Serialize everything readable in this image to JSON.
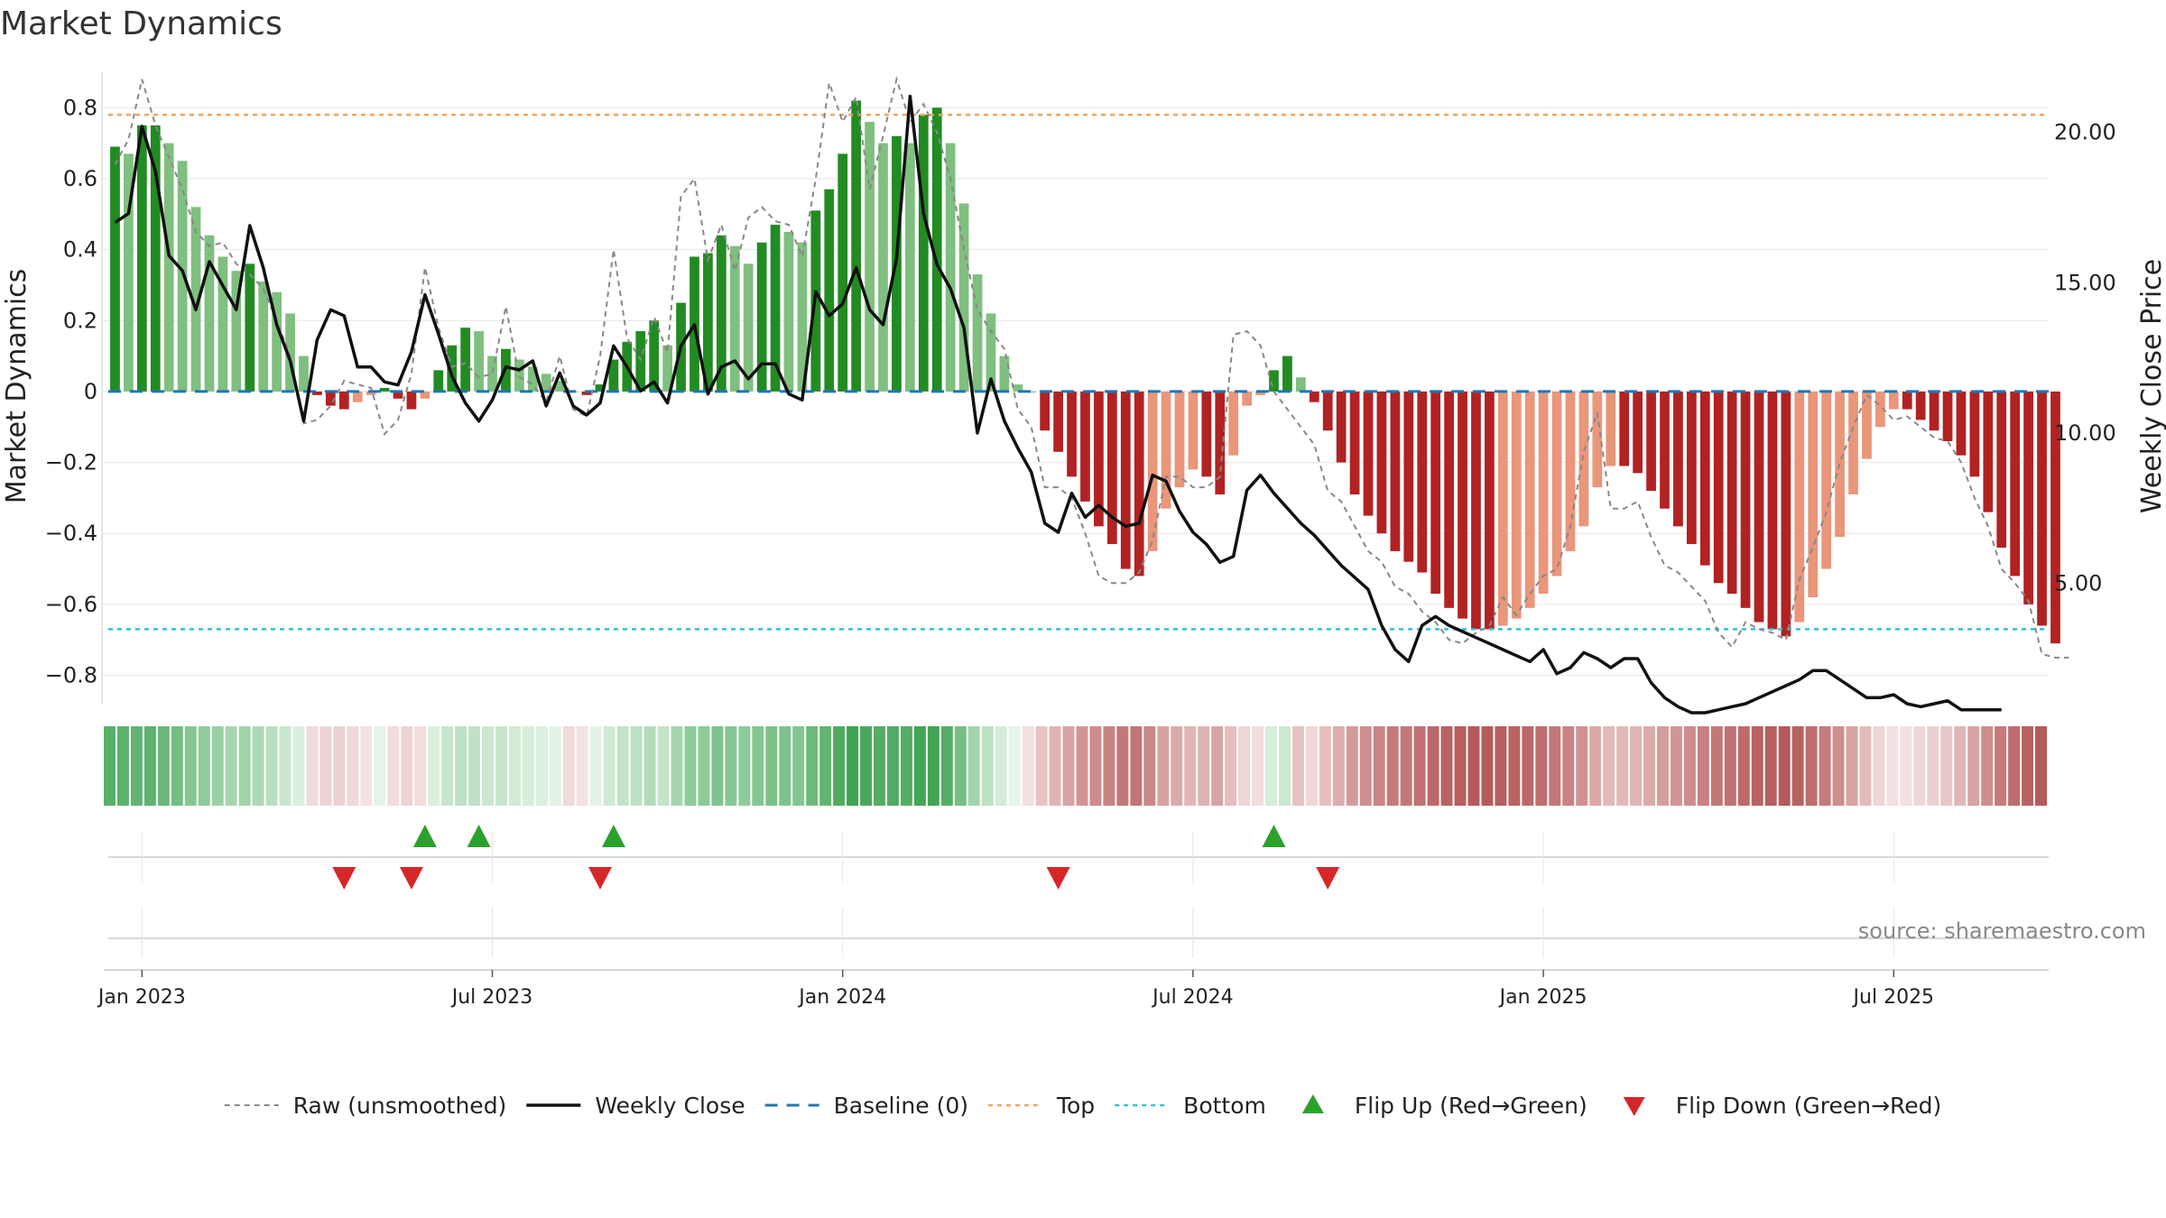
{
  "chart_data": {
    "type": "bar",
    "title": "Market Dynamics",
    "ylabel_left": "Market Dynamics",
    "ylabel_right": "Weekly Close Price",
    "ylim_left": [
      -0.88,
      0.9
    ],
    "ylim_right": [
      1.0,
      22.0
    ],
    "left_ticks": [
      {
        "v": 0.8,
        "label": "0.8"
      },
      {
        "v": 0.6,
        "label": "0.6"
      },
      {
        "v": 0.4,
        "label": "0.4"
      },
      {
        "v": 0.2,
        "label": "0.2"
      },
      {
        "v": 0,
        "label": "0"
      },
      {
        "v": -0.2,
        "label": "−0.2"
      },
      {
        "v": -0.4,
        "label": "−0.4"
      },
      {
        "v": -0.6,
        "label": "−0.6"
      },
      {
        "v": -0.8,
        "label": "−0.8"
      }
    ],
    "right_ticks": [
      {
        "v": 20,
        "label": "20.00"
      },
      {
        "v": 15,
        "label": "15.00"
      },
      {
        "v": 10,
        "label": "10.00"
      },
      {
        "v": 5,
        "label": "5.00"
      }
    ],
    "x_ticks": [
      {
        "week": 2,
        "label": "Jan 2023"
      },
      {
        "week": 28,
        "label": "Jul 2023"
      },
      {
        "week": 54,
        "label": "Jan 2024"
      },
      {
        "week": 80,
        "label": "Jul 2024"
      },
      {
        "week": 106,
        "label": "Jan 2025"
      },
      {
        "week": 132,
        "label": "Jul 2025"
      }
    ],
    "top_line": 0.78,
    "bottom_line": -0.67,
    "weeks": 144,
    "smoothed": [
      0.69,
      0.67,
      0.75,
      0.75,
      0.7,
      0.65,
      0.52,
      0.44,
      0.38,
      0.34,
      0.36,
      0.31,
      0.28,
      0.22,
      0.1,
      -0.01,
      -0.04,
      -0.05,
      -0.03,
      -0.01,
      0.01,
      -0.02,
      -0.05,
      -0.02,
      0.06,
      0.13,
      0.18,
      0.17,
      0.1,
      0.12,
      0.09,
      0.07,
      0.05,
      0.03,
      0.0,
      -0.01,
      0.02,
      0.09,
      0.14,
      0.17,
      0.2,
      0.13,
      0.25,
      0.38,
      0.39,
      0.44,
      0.41,
      0.36,
      0.42,
      0.47,
      0.45,
      0.42,
      0.51,
      0.57,
      0.67,
      0.82,
      0.76,
      0.7,
      0.72,
      0.7,
      0.78,
      0.8,
      0.7,
      0.53,
      0.33,
      0.22,
      0.1,
      0.02,
      0.0,
      -0.11,
      -0.17,
      -0.24,
      -0.31,
      -0.38,
      -0.43,
      -0.5,
      -0.52,
      -0.45,
      -0.33,
      -0.27,
      -0.22,
      -0.24,
      -0.29,
      -0.18,
      -0.04,
      -0.01,
      0.06,
      0.1,
      0.04,
      -0.03,
      -0.11,
      -0.2,
      -0.29,
      -0.35,
      -0.4,
      -0.45,
      -0.48,
      -0.51,
      -0.57,
      -0.61,
      -0.64,
      -0.67,
      -0.67,
      -0.66,
      -0.64,
      -0.61,
      -0.57,
      -0.52,
      -0.45,
      -0.38,
      -0.27,
      -0.21,
      -0.21,
      -0.23,
      -0.28,
      -0.33,
      -0.38,
      -0.43,
      -0.49,
      -0.54,
      -0.57,
      -0.61,
      -0.65,
      -0.67,
      -0.69,
      -0.65,
      -0.58,
      -0.5,
      -0.41,
      -0.29,
      -0.19,
      -0.1,
      -0.05,
      -0.05,
      -0.08,
      -0.11,
      -0.14,
      -0.18,
      -0.24,
      -0.34,
      -0.44,
      -0.52,
      -0.6,
      -0.66,
      -0.71
    ],
    "raw": [
      0.64,
      0.71,
      0.88,
      0.75,
      0.66,
      0.57,
      0.45,
      0.41,
      0.42,
      0.36,
      0.33,
      0.29,
      0.2,
      0.1,
      -0.09,
      -0.08,
      -0.04,
      0.03,
      0.02,
      0.01,
      -0.12,
      -0.08,
      0.05,
      0.35,
      0.18,
      0.07,
      0.08,
      0.04,
      0.05,
      0.24,
      0.04,
      0.02,
      -0.03,
      0.1,
      -0.05,
      -0.07,
      0.1,
      0.4,
      0.15,
      0.09,
      0.21,
      0.11,
      0.55,
      0.6,
      0.37,
      0.47,
      0.34,
      0.49,
      0.52,
      0.48,
      0.47,
      0.38,
      0.6,
      0.87,
      0.76,
      0.83,
      0.57,
      0.72,
      0.88,
      0.76,
      0.81,
      0.73,
      0.6,
      0.4,
      0.23,
      0.17,
      0.12,
      -0.05,
      -0.1,
      -0.27,
      -0.27,
      -0.3,
      -0.4,
      -0.52,
      -0.54,
      -0.54,
      -0.51,
      -0.42,
      -0.24,
      -0.24,
      -0.27,
      -0.27,
      -0.24,
      0.16,
      0.17,
      0.13,
      0.0,
      -0.05,
      -0.1,
      -0.15,
      -0.28,
      -0.31,
      -0.38,
      -0.45,
      -0.48,
      -0.55,
      -0.57,
      -0.62,
      -0.65,
      -0.7,
      -0.71,
      -0.68,
      -0.66,
      -0.58,
      -0.63,
      -0.57,
      -0.52,
      -0.5,
      -0.38,
      -0.17,
      -0.06,
      -0.33,
      -0.33,
      -0.31,
      -0.41,
      -0.49,
      -0.51,
      -0.55,
      -0.59,
      -0.68,
      -0.72,
      -0.65,
      -0.67,
      -0.68,
      -0.7,
      -0.53,
      -0.44,
      -0.34,
      -0.2,
      -0.1,
      -0.01,
      -0.04,
      -0.08,
      -0.07,
      -0.1,
      -0.13,
      -0.14,
      -0.2,
      -0.3,
      -0.38,
      -0.5,
      -0.54,
      -0.59,
      -0.74,
      -0.75,
      -0.75
    ],
    "weekly_close": [
      17.0,
      17.3,
      20.2,
      18.7,
      15.9,
      15.4,
      14.1,
      15.7,
      14.9,
      14.1,
      16.9,
      15.5,
      13.6,
      12.4,
      10.4,
      13.1,
      14.1,
      13.9,
      12.2,
      12.2,
      11.7,
      11.6,
      12.7,
      14.6,
      13.3,
      11.9,
      11.0,
      10.4,
      11.1,
      12.2,
      12.1,
      12.4,
      10.9,
      12.0,
      10.9,
      10.6,
      11.0,
      12.9,
      12.2,
      11.4,
      11.7,
      11.0,
      12.9,
      13.6,
      11.3,
      12.2,
      12.4,
      11.8,
      12.3,
      12.3,
      11.3,
      11.1,
      14.7,
      13.9,
      14.3,
      15.5,
      14.1,
      13.6,
      15.8,
      21.2,
      17.3,
      15.6,
      14.8,
      13.5,
      10.0,
      11.8,
      10.4,
      9.5,
      8.7,
      7.0,
      6.7,
      8.0,
      7.2,
      7.6,
      7.2,
      6.9,
      7.0,
      8.6,
      8.4,
      7.4,
      6.7,
      6.3,
      5.7,
      5.9,
      8.1,
      8.6,
      8.0,
      7.5,
      7.0,
      6.6,
      6.1,
      5.6,
      5.2,
      4.8,
      3.6,
      2.8,
      2.4,
      3.6,
      3.9,
      3.6,
      3.4,
      3.2,
      3.0,
      2.8,
      2.6,
      2.4,
      2.8,
      2.0,
      2.2,
      2.7,
      2.5,
      2.2,
      2.5,
      2.5,
      1.7,
      1.2,
      0.9,
      0.7,
      0.7,
      0.8,
      0.9,
      1.0,
      1.2,
      1.4,
      1.6,
      1.8,
      2.1,
      2.1,
      1.8,
      1.5,
      1.2,
      1.2,
      1.3,
      1.0,
      0.9,
      1.0,
      1.1,
      0.8,
      0.8,
      0.8,
      0.8
    ],
    "signal_strip_colors": [
      "#58b068",
      "#5bb26b",
      "#62b571",
      "#5eb46e",
      "#6ab97a",
      "#74be82",
      "#85c792",
      "#8fcb9b",
      "#99d0a4",
      "#a6d6b0",
      "#a0d3aa",
      "#aed9b6",
      "#b8dfbf",
      "#c8e7ce",
      "#daf0de",
      "#f1dada",
      "#eed3d3",
      "#edd1d1",
      "#f0d8d8",
      "#f4e2e2",
      "#e5f3e8",
      "#f2dcdc",
      "#eed3d3",
      "#f2dcdc",
      "#d9efdd",
      "#c6e6cc",
      "#bde1c4",
      "#bfe2c5",
      "#cbe8d0",
      "#c6e6cc",
      "#d1ebd5",
      "#d6eeda",
      "#dbf0df",
      "#e2f3e5",
      "#f1dada",
      "#f4e2e2",
      "#e4f3e7",
      "#cfead4",
      "#c1e3c7",
      "#bce1c2",
      "#b2dbba",
      "#c3e4c9",
      "#a5d5af",
      "#8ccc99",
      "#8bcb98",
      "#80c48d",
      "#85c792",
      "#8ecb9a",
      "#84c691",
      "#7bc289",
      "#7ec38b",
      "#83c690",
      "#6eba7c",
      "#62b571",
      "#4fab60",
      "#3fa352",
      "#4aa85c",
      "#55ad65",
      "#52ab62",
      "#55ad65",
      "#44a556",
      "#42a454",
      "#55ad65",
      "#76bf84",
      "#a3d5ad",
      "#bde1c4",
      "#d3ecd7",
      "#e6f4e9",
      "#f3dfdf",
      "#e8c2c2",
      "#e1b4b4",
      "#d9a3a3",
      "#d29595",
      "#ce8c8c",
      "#ca8383",
      "#c47777",
      "#c37474",
      "#cc8888",
      "#d9a2a2",
      "#dbaaaa",
      "#e2b6b6",
      "#e0b2b2",
      "#d9a4a4",
      "#e5bdbd",
      "#f0d6d6",
      "#f2dcdc",
      "#d6eeda",
      "#cbe8d0",
      "#e8c2c2",
      "#f0d6d6",
      "#e6bebe",
      "#ddacac",
      "#d49a9a",
      "#cf8f8f",
      "#cb8585",
      "#c67b7b",
      "#c47777",
      "#c17171",
      "#bc6868",
      "#b96262",
      "#b75e5e",
      "#b45a5a",
      "#b55b5b",
      "#b75e5e",
      "#b96262",
      "#bc6868",
      "#c06f6f",
      "#c47777",
      "#ca8383",
      "#d09292",
      "#dca8a8",
      "#e3b8b8",
      "#e3b8b8",
      "#e1b4b4",
      "#dbaaaa",
      "#d69d9d",
      "#d29494",
      "#ce8c8c",
      "#c98080",
      "#c47777",
      "#c17171",
      "#bd6a6a",
      "#b96262",
      "#b75e5e",
      "#b55a5a",
      "#b96262",
      "#bf6d6d",
      "#c67b7b",
      "#cf8e8e",
      "#d9a3a3",
      "#e4bbbb",
      "#efd4d4",
      "#f4e0e0",
      "#f4e0e0",
      "#f0d7d7",
      "#ecd0d0",
      "#e8c6c6",
      "#e2b6b6",
      "#d9a3a3",
      "#cf8e8e",
      "#c67b7b",
      "#be6c6c",
      "#b96262",
      "#b45a5a"
    ],
    "flips_up": [
      23,
      27,
      37,
      86
    ],
    "flips_down": [
      17,
      22,
      36,
      70,
      90
    ],
    "source": "source: sharemaestro.com",
    "legend": [
      {
        "label": "Raw (unsmoothed)",
        "kind": "line",
        "color": "#888888",
        "dash": "6,5",
        "width": 2
      },
      {
        "label": "Weekly Close",
        "kind": "line",
        "color": "#111111",
        "dash": "",
        "width": 3.5
      },
      {
        "label": "Baseline (0)",
        "kind": "line",
        "color": "#1f77b4",
        "dash": "14,10",
        "width": 3
      },
      {
        "label": "Top",
        "kind": "line",
        "color": "#f4a460",
        "dash": "5,5",
        "width": 2.5
      },
      {
        "label": "Bottom",
        "kind": "line",
        "color": "#2bc4d4",
        "dash": "5,5",
        "width": 2.5
      },
      {
        "label": "Flip Up (Red→Green)",
        "kind": "up",
        "color": "#2ca02c"
      },
      {
        "label": "Flip Down (Green→Red)",
        "kind": "down",
        "color": "#d62728"
      }
    ],
    "colors": {
      "pos_strong": "#228b22",
      "pos_weak": "#7fbf7f",
      "neg_strong": "#b22222",
      "neg_weak": "#e9967a",
      "grid": "#e6e6e6",
      "axis": "#cccccc"
    }
  }
}
